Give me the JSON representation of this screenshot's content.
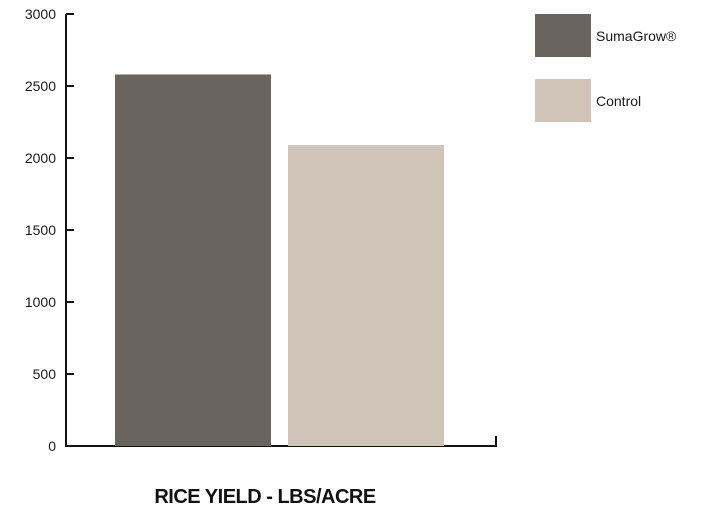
{
  "chart_data": {
    "type": "bar",
    "title": "RICE YIELD - LBS/ACRE",
    "xlabel": "",
    "ylabel": "",
    "categories": [
      "SumaGrow®",
      "Control"
    ],
    "series": [
      {
        "name": "SumaGrow®",
        "value": 2580,
        "color": "#69645e"
      },
      {
        "name": "Control",
        "value": 2090,
        "color": "#d0c3b8"
      }
    ],
    "ylim": [
      0,
      3000
    ],
    "yticks": [
      "0",
      "500",
      "1000",
      "1500",
      "2000",
      "2500",
      "3000"
    ],
    "grid": false,
    "legend_position": "top-right"
  }
}
